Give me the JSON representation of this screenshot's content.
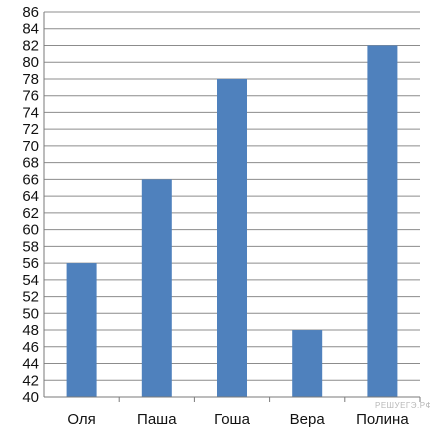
{
  "chart_data": {
    "type": "bar",
    "title": "",
    "xlabel": "",
    "ylabel": "",
    "categories": [
      "Оля",
      "Паша",
      "Гоша",
      "Вера",
      "Полина"
    ],
    "values": [
      56,
      66,
      78,
      48,
      82
    ],
    "ylim": [
      40,
      86
    ],
    "ytick_step": 2,
    "grid": true,
    "bar_color": "#4f81bd"
  },
  "watermark": "РЕШУЕГЭ.РФ"
}
